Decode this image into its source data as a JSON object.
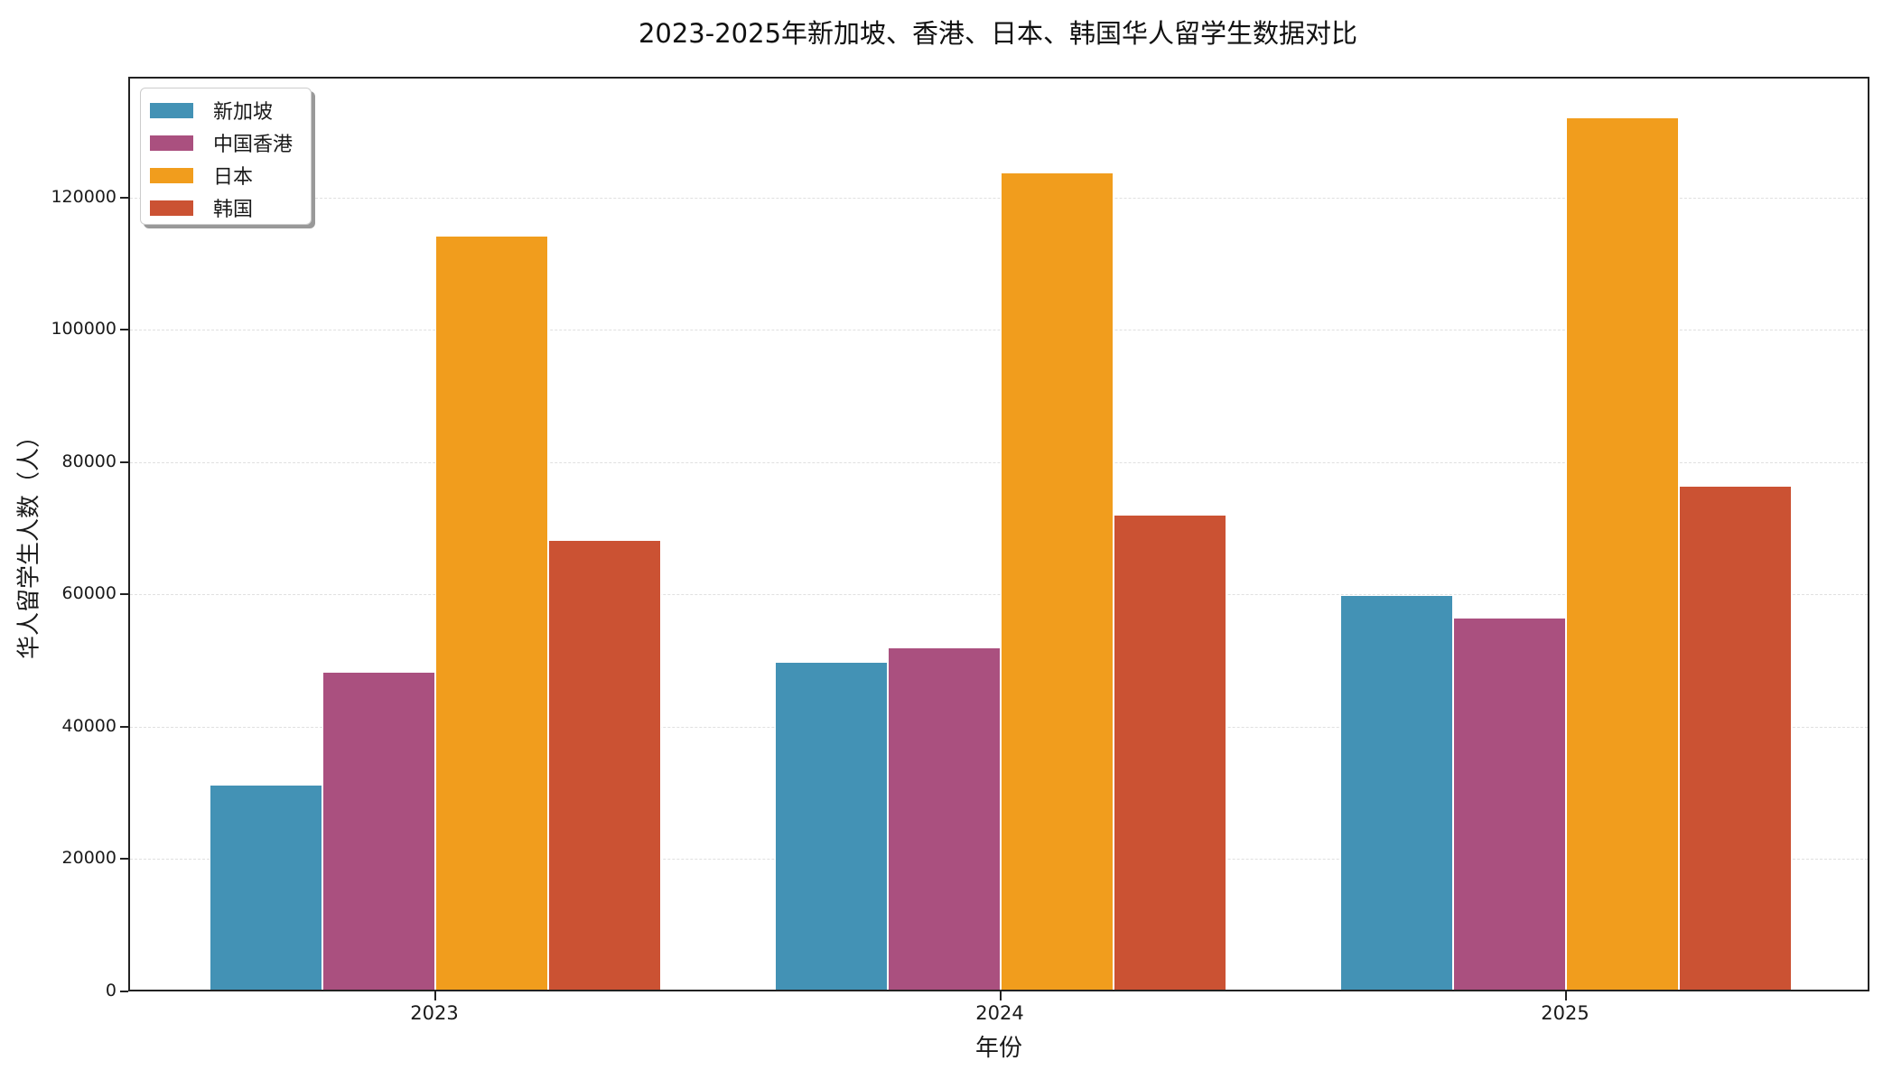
{
  "chart_data": {
    "type": "bar",
    "title": "2023-2025年新加坡、香港、日本、韩国华人留学生数据对比",
    "xlabel": "年份",
    "ylabel": "华人留学生人数（人）",
    "categories": [
      "2023",
      "2024",
      "2025"
    ],
    "series": [
      {
        "name": "新加坡",
        "color": "#4392B5",
        "values": [
          31000,
          49600,
          59700
        ]
      },
      {
        "name": "中国香港",
        "color": "#AA507F",
        "values": [
          48000,
          51700,
          56200
        ]
      },
      {
        "name": "日本",
        "color": "#F19D1D",
        "values": [
          114000,
          123500,
          131800
        ]
      },
      {
        "name": "韩国",
        "color": "#CB5233",
        "values": [
          68000,
          71800,
          76200
        ]
      }
    ],
    "ylim": [
      0,
      138000
    ],
    "yticks": [
      0,
      20000,
      40000,
      60000,
      80000,
      100000,
      120000
    ],
    "ytick_labels": [
      "0",
      "20000",
      "40000",
      "60000",
      "80000",
      "100000",
      "120000"
    ],
    "grid": {
      "y": true,
      "x": false,
      "style": "dashed"
    },
    "legend_position": "upper left"
  }
}
